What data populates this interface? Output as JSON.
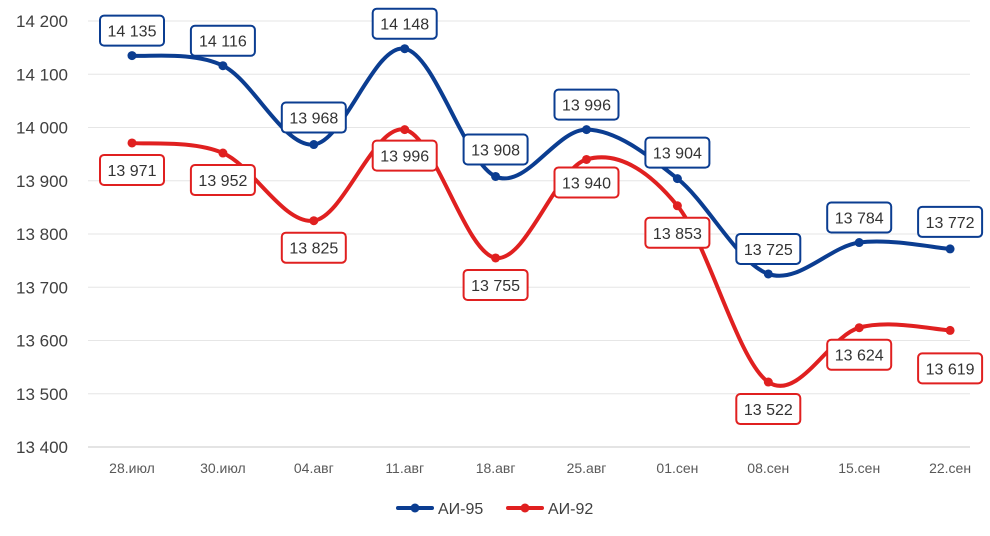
{
  "chart_data": {
    "type": "line",
    "categories": [
      "28.июл",
      "30.июл",
      "04.авг",
      "11.авг",
      "18.авг",
      "25.авг",
      "01.сен",
      "08.сен",
      "15.сен",
      "22.сен"
    ],
    "series": [
      {
        "name": "АИ-95",
        "color": "#0b3d91",
        "values": [
          14135,
          14116,
          13968,
          14148,
          13908,
          13996,
          13904,
          13725,
          13784,
          13772
        ],
        "labels": [
          "14 135",
          "14 116",
          "13 968",
          "14 148",
          "13 908",
          "13 996",
          "13 904",
          "13 725",
          "13 784",
          "13 772"
        ]
      },
      {
        "name": "АИ-92",
        "color": "#e02020",
        "values": [
          13971,
          13952,
          13825,
          13996,
          13755,
          13940,
          13853,
          13522,
          13624,
          13619
        ],
        "labels": [
          "13 971",
          "13 952",
          "13 825",
          "13 996",
          "13 755",
          "13 940",
          "13 853",
          "13 522",
          "13 624",
          "13 619"
        ]
      }
    ],
    "yticks": [
      13400,
      13500,
      13600,
      13700,
      13800,
      13900,
      14000,
      14100,
      14200
    ],
    "ytick_labels": [
      "13 400",
      "13 500",
      "13 600",
      "13 700",
      "13 800",
      "13 900",
      "14 000",
      "14 100",
      "14 200"
    ],
    "ylim": [
      13400,
      14200
    ],
    "grid": true,
    "legend_position": "bottom",
    "smooth": true
  }
}
